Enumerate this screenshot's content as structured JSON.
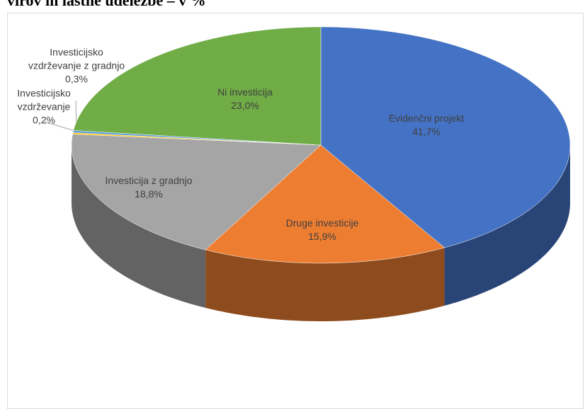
{
  "chart_data": {
    "type": "pie",
    "title": "virov in lastne udeležbe – v %",
    "categories": [
      "Evidenčni projekt",
      "Druge investicije",
      "Investicija z gradnjo",
      "Investicijsko vzdrževanje",
      "Investicijsko vzdrževanje z gradnjo",
      "Ni investicija"
    ],
    "values": [
      41.7,
      15.9,
      18.8,
      0.2,
      0.3,
      23.0
    ],
    "value_labels": [
      "41,7%",
      "15,9%",
      "18,8%",
      "0,2%",
      "0,3%",
      "23,0%"
    ],
    "colors": [
      "#4472c4",
      "#ed7d31",
      "#a5a5a5",
      "#ffc000",
      "#5b9bd5",
      "#70ad47"
    ]
  }
}
